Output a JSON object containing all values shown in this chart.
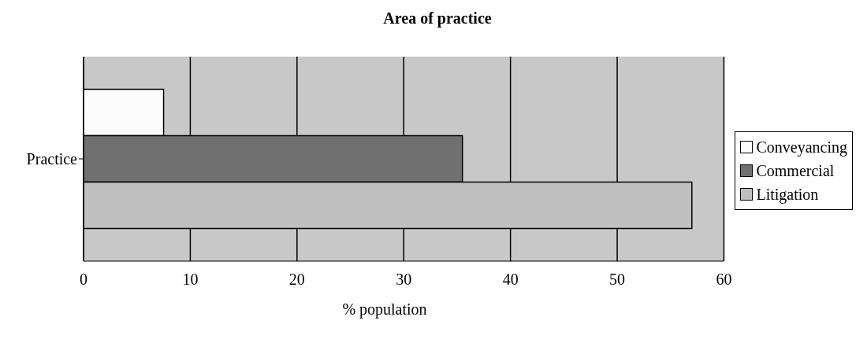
{
  "chart_data": {
    "type": "bar",
    "orientation": "horizontal",
    "title": "Area of practice",
    "xlabel": "% population",
    "categories": [
      "Practice"
    ],
    "series": [
      {
        "name": "Conveyancing",
        "color": "#fcfcfc",
        "values": [
          7.5
        ]
      },
      {
        "name": "Commercial",
        "color": "#707070",
        "values": [
          35.5
        ]
      },
      {
        "name": "Litigation",
        "color": "#c0c0c0",
        "values": [
          57
        ]
      }
    ],
    "xlim": [
      0,
      60
    ],
    "xticks": [
      0,
      10,
      20,
      30,
      40,
      50,
      60
    ],
    "grid": "x",
    "legend": "right"
  }
}
